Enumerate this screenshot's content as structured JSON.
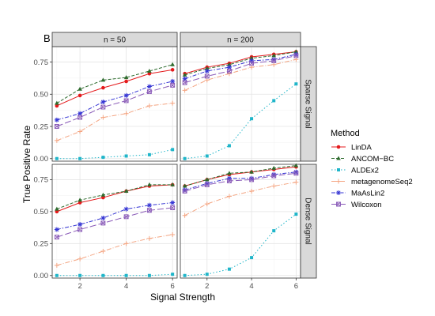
{
  "chart_data": {
    "type": "line",
    "panel_tag": "B",
    "xlabel": "Signal Strength",
    "ylabel": "True Positive Rate",
    "x": [
      1,
      2,
      3,
      4,
      5,
      6
    ],
    "xlim": [
      0.8,
      6.2
    ],
    "ylim": [
      -0.02,
      0.87
    ],
    "x_ticks": [
      2,
      4,
      6
    ],
    "y_ticks": [
      "0.00",
      "0.25",
      "0.50",
      "0.75"
    ],
    "columns": [
      "n = 50",
      "n = 200"
    ],
    "rows": [
      "Sparse Signal",
      "Dense Signal"
    ],
    "legend_title": "Method",
    "legend_position": "right",
    "grid": true,
    "methods": [
      {
        "name": "LinDA",
        "color": "#E41A1C",
        "dash": "",
        "marker": "circle"
      },
      {
        "name": "ANCOM−BC",
        "color": "#2E6B2E",
        "dash": "4,2",
        "marker": "triangle"
      },
      {
        "name": "ALDEx2",
        "color": "#1FB5C9",
        "dash": "1.5,2.5",
        "marker": "square"
      },
      {
        "name": "metagenomeSeq2",
        "color": "#F4A582",
        "dash": "6,2,1,2",
        "marker": "plus"
      },
      {
        "name": "MaAsLin2",
        "color": "#3636D4",
        "dash": "5,2,1.5,2",
        "marker": "asterisk"
      },
      {
        "name": "Wilcoxon",
        "color": "#8A5BB8",
        "dash": "8,3",
        "marker": "boxcross"
      }
    ],
    "panels": [
      {
        "row": "Sparse Signal",
        "col": "n = 50",
        "series": [
          {
            "name": "LinDA",
            "values": [
              0.41,
              0.49,
              0.55,
              0.6,
              0.66,
              0.69
            ]
          },
          {
            "name": "ANCOM−BC",
            "values": [
              0.43,
              0.54,
              0.61,
              0.63,
              0.68,
              0.73
            ]
          },
          {
            "name": "ALDEx2",
            "values": [
              0.0,
              0.0,
              0.01,
              0.02,
              0.03,
              0.07
            ]
          },
          {
            "name": "metagenomeSeq2",
            "values": [
              0.14,
              0.21,
              0.32,
              0.35,
              0.41,
              0.43
            ]
          },
          {
            "name": "MaAsLin2",
            "values": [
              0.3,
              0.35,
              0.44,
              0.49,
              0.56,
              0.6
            ]
          },
          {
            "name": "Wilcoxon",
            "values": [
              0.25,
              0.32,
              0.4,
              0.45,
              0.52,
              0.57
            ]
          }
        ]
      },
      {
        "row": "Sparse Signal",
        "col": "n = 200",
        "series": [
          {
            "name": "LinDA",
            "values": [
              0.66,
              0.71,
              0.74,
              0.79,
              0.81,
              0.83
            ]
          },
          {
            "name": "ANCOM−BC",
            "values": [
              0.65,
              0.7,
              0.73,
              0.78,
              0.8,
              0.83
            ]
          },
          {
            "name": "ALDEx2",
            "values": [
              0.0,
              0.02,
              0.1,
              0.31,
              0.45,
              0.58
            ]
          },
          {
            "name": "metagenomeSeq2",
            "values": [
              0.53,
              0.61,
              0.66,
              0.71,
              0.73,
              0.77
            ]
          },
          {
            "name": "MaAsLin2",
            "values": [
              0.62,
              0.68,
              0.71,
              0.76,
              0.77,
              0.81
            ]
          },
          {
            "name": "Wilcoxon",
            "values": [
              0.59,
              0.64,
              0.68,
              0.74,
              0.76,
              0.8
            ]
          }
        ]
      },
      {
        "row": "Dense Signal",
        "col": "n = 50",
        "series": [
          {
            "name": "LinDA",
            "values": [
              0.5,
              0.57,
              0.61,
              0.66,
              0.7,
              0.71
            ]
          },
          {
            "name": "ANCOM−BC",
            "values": [
              0.52,
              0.59,
              0.63,
              0.66,
              0.71,
              0.71
            ]
          },
          {
            "name": "ALDEx2",
            "values": [
              0.0,
              0.0,
              0.0,
              0.0,
              0.0,
              0.01
            ]
          },
          {
            "name": "metagenomeSeq2",
            "values": [
              0.08,
              0.13,
              0.19,
              0.25,
              0.29,
              0.32
            ]
          },
          {
            "name": "MaAsLin2",
            "values": [
              0.36,
              0.4,
              0.45,
              0.52,
              0.55,
              0.57
            ]
          },
          {
            "name": "Wilcoxon",
            "values": [
              0.3,
              0.36,
              0.41,
              0.46,
              0.51,
              0.53
            ]
          }
        ]
      },
      {
        "row": "Dense Signal",
        "col": "n = 200",
        "series": [
          {
            "name": "LinDA",
            "values": [
              0.7,
              0.75,
              0.79,
              0.81,
              0.83,
              0.85
            ]
          },
          {
            "name": "ANCOM−BC",
            "values": [
              0.7,
              0.75,
              0.8,
              0.81,
              0.84,
              0.86
            ]
          },
          {
            "name": "ALDEx2",
            "values": [
              0.0,
              0.01,
              0.05,
              0.14,
              0.35,
              0.48
            ]
          },
          {
            "name": "metagenomeSeq2",
            "values": [
              0.47,
              0.56,
              0.62,
              0.66,
              0.7,
              0.73
            ]
          },
          {
            "name": "MaAsLin2",
            "values": [
              0.67,
              0.72,
              0.76,
              0.76,
              0.79,
              0.81
            ]
          },
          {
            "name": "Wilcoxon",
            "values": [
              0.66,
              0.71,
              0.74,
              0.75,
              0.78,
              0.8
            ]
          }
        ]
      }
    ]
  }
}
